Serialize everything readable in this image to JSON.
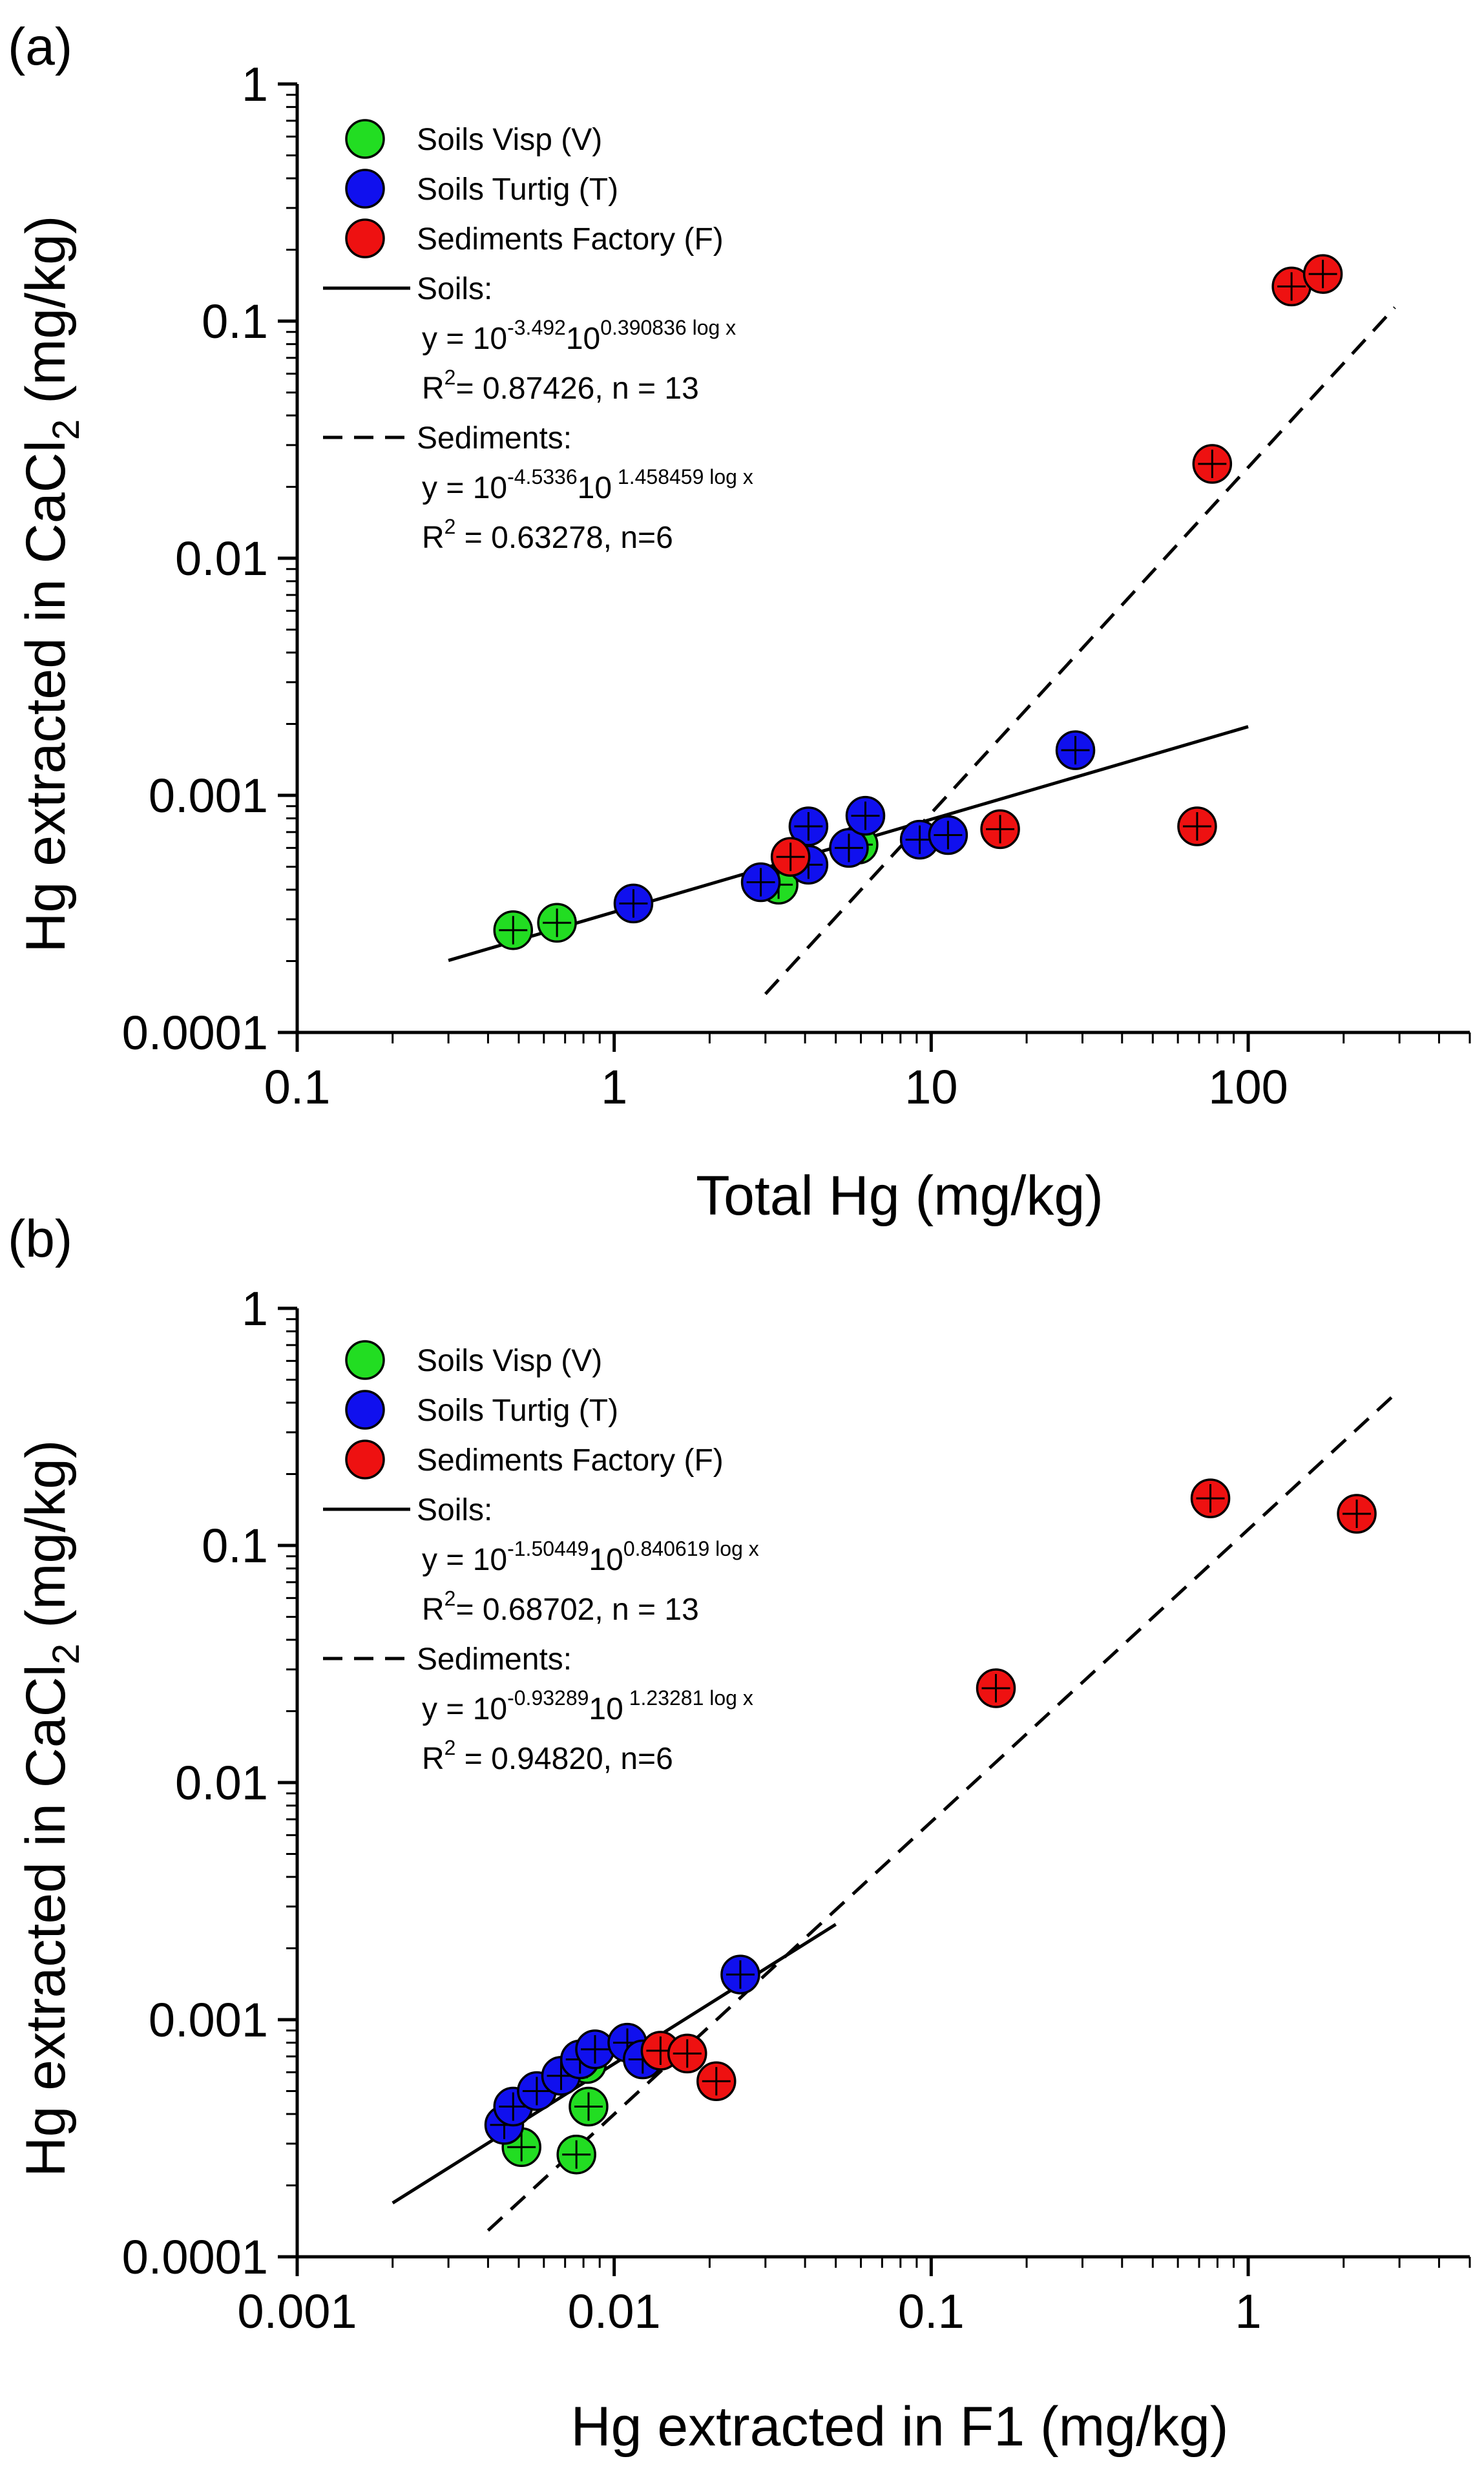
{
  "chart_data": [
    {
      "panel": "(a)",
      "type": "scatter",
      "xscale": "log",
      "yscale": "log",
      "xlabel": "Total Hg (mg/kg)",
      "ylabel_main": "Hg extracted in CaCl",
      "ylabel_sub": "2",
      "ylabel_end": " (mg/kg)",
      "xlim": [
        0.1,
        500
      ],
      "ylim": [
        0.0001,
        1
      ],
      "xticks": [
        {
          "v": 0.1,
          "label": "0.1"
        },
        {
          "v": 1,
          "label": "1"
        },
        {
          "v": 10,
          "label": "10"
        },
        {
          "v": 100,
          "label": "100"
        }
      ],
      "yticks": [
        {
          "v": 0.0001,
          "label": "0.0001"
        },
        {
          "v": 0.001,
          "label": "0.001"
        },
        {
          "v": 0.01,
          "label": "0.01"
        },
        {
          "v": 0.1,
          "label": "0.1"
        },
        {
          "v": 1,
          "label": "1"
        }
      ],
      "series": [
        {
          "name": "Soils Visp (V)",
          "color": "#22dd22",
          "points": [
            [
              0.48,
              0.00027
            ],
            [
              0.66,
              0.00029
            ],
            [
              3.3,
              0.00042
            ],
            [
              5.9,
              0.00062
            ]
          ]
        },
        {
          "name": "Soils Turtig (T)",
          "color": "#1010ee",
          "points": [
            [
              1.15,
              0.00035
            ],
            [
              2.9,
              0.00043
            ],
            [
              4.1,
              0.00051
            ],
            [
              4.1,
              0.00074
            ],
            [
              5.5,
              0.0006
            ],
            [
              6.2,
              0.00082
            ],
            [
              9.2,
              0.00065
            ],
            [
              11.3,
              0.00068
            ],
            [
              28.5,
              0.00155
            ]
          ]
        },
        {
          "name": "Sediments Factory (F)",
          "color": "#ee1111",
          "points": [
            [
              3.6,
              0.00055
            ],
            [
              16.5,
              0.00072
            ],
            [
              69,
              0.00074
            ],
            [
              77,
              0.025
            ],
            [
              137,
              0.14
            ],
            [
              172,
              0.158
            ]
          ]
        }
      ],
      "fits": [
        {
          "name": "Soils:",
          "style": "solid",
          "a": -3.492,
          "b": 0.390836,
          "xrange": [
            0.3,
            100
          ],
          "eq_exp1": "-3.492",
          "eq_exp2": "0.390836 log x",
          "r2_text": "= 0.87426, n = 13"
        },
        {
          "name": "Sediments:",
          "style": "dashed",
          "a": -4.5336,
          "b": 1.458459,
          "xrange": [
            3,
            290
          ],
          "eq_exp1": "-4.5336",
          "eq_exp2": " 1.458459 log x",
          "r2_text": " = 0.63278, n=6"
        }
      ]
    },
    {
      "panel": "(b)",
      "type": "scatter",
      "xscale": "log",
      "yscale": "log",
      "xlabel": "Hg extracted in F1 (mg/kg)",
      "ylabel_main": "Hg extracted in CaCl",
      "ylabel_sub": "2",
      "ylabel_end": " (mg/kg)",
      "xlim": [
        0.001,
        5
      ],
      "ylim": [
        0.0001,
        1
      ],
      "xticks": [
        {
          "v": 0.001,
          "label": "0.001"
        },
        {
          "v": 0.01,
          "label": "0.01"
        },
        {
          "v": 0.1,
          "label": "0.1"
        },
        {
          "v": 1,
          "label": "1"
        }
      ],
      "yticks": [
        {
          "v": 0.0001,
          "label": "0.0001"
        },
        {
          "v": 0.001,
          "label": "0.001"
        },
        {
          "v": 0.01,
          "label": "0.01"
        },
        {
          "v": 0.1,
          "label": "0.1"
        },
        {
          "v": 1,
          "label": "1"
        }
      ],
      "series": [
        {
          "name": "Soils Visp (V)",
          "color": "#22dd22",
          "points": [
            [
              0.0051,
              0.00029
            ],
            [
              0.0076,
              0.00027
            ],
            [
              0.0083,
              0.00043
            ],
            [
              0.0082,
              0.00065
            ]
          ]
        },
        {
          "name": "Soils Turtig (T)",
          "color": "#1010ee",
          "points": [
            [
              0.0045,
              0.00036
            ],
            [
              0.0048,
              0.00043
            ],
            [
              0.0057,
              0.0005
            ],
            [
              0.0068,
              0.00058
            ],
            [
              0.0078,
              0.00068
            ],
            [
              0.0087,
              0.00075
            ],
            [
              0.011,
              0.0008
            ],
            [
              0.0123,
              0.00068
            ],
            [
              0.025,
              0.00155
            ]
          ]
        },
        {
          "name": "Sediments Factory (F)",
          "color": "#ee1111",
          "points": [
            [
              0.014,
              0.00074
            ],
            [
              0.017,
              0.00072
            ],
            [
              0.021,
              0.00055
            ],
            [
              0.16,
              0.025
            ],
            [
              0.76,
              0.158
            ],
            [
              2.2,
              0.136
            ]
          ]
        }
      ],
      "fits": [
        {
          "name": "Soils:",
          "style": "solid",
          "a": -1.50449,
          "b": 0.840619,
          "xrange": [
            0.002,
            0.05
          ],
          "eq_exp1": "-1.50449",
          "eq_exp2": "0.840619 log x",
          "r2_text": "= 0.68702, n = 13"
        },
        {
          "name": "Sediments:",
          "style": "dashed",
          "a": -0.93289,
          "b": 1.23281,
          "xrange": [
            0.004,
            3
          ],
          "eq_exp1": "-0.93289",
          "eq_exp2": " 1.23281 log x",
          "r2_text": " = 0.94820, n=6"
        }
      ]
    }
  ]
}
